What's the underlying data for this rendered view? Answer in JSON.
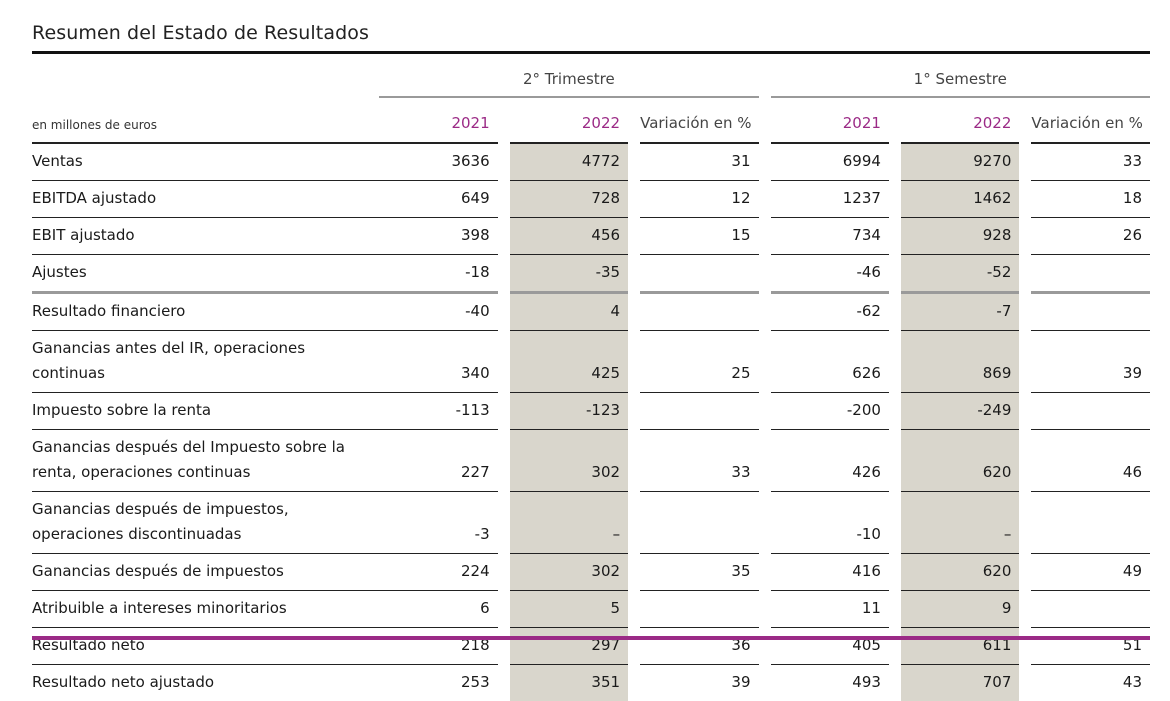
{
  "title": "Resumen del Estado de Resultados",
  "groups": {
    "q2": "2° Trimestre",
    "h1": "1° Semestre"
  },
  "columns": {
    "units": "en millones de euros",
    "q2_2021": "2021",
    "q2_2022": "2022",
    "q2_var": "Variación en %",
    "h1_2021": "2021",
    "h1_2022": "2022",
    "h1_var": "Variación en %"
  },
  "rows": [
    {
      "label": "Ventas",
      "q2_2021": "3636",
      "q2_2022": "4772",
      "q2_var": "31",
      "h1_2021": "6994",
      "h1_2022": "9270",
      "h1_var": "33"
    },
    {
      "label": "EBITDA ajustado",
      "q2_2021": "649",
      "q2_2022": "728",
      "q2_var": "12",
      "h1_2021": "1237",
      "h1_2022": "1462",
      "h1_var": "18"
    },
    {
      "label": "EBIT ajustado",
      "q2_2021": "398",
      "q2_2022": "456",
      "q2_var": "15",
      "h1_2021": "734",
      "h1_2022": "928",
      "h1_var": "26"
    },
    {
      "label": "Ajustes",
      "q2_2021": "-18",
      "q2_2022": "-35",
      "q2_var": "",
      "h1_2021": "-46",
      "h1_2022": "-52",
      "h1_var": ""
    },
    {
      "label": "Resultado financiero",
      "q2_2021": "-40",
      "q2_2022": "4",
      "q2_var": "",
      "h1_2021": "-62",
      "h1_2022": "-7",
      "h1_var": ""
    },
    {
      "label": "Ganancias antes del IR, operaciones continuas",
      "q2_2021": "340",
      "q2_2022": "425",
      "q2_var": "25",
      "h1_2021": "626",
      "h1_2022": "869",
      "h1_var": "39"
    },
    {
      "label": "Impuesto sobre la renta",
      "q2_2021": "-113",
      "q2_2022": "-123",
      "q2_var": "",
      "h1_2021": "-200",
      "h1_2022": "-249",
      "h1_var": ""
    },
    {
      "label": "Ganancias después del Impuesto sobre la renta, operaciones continuas",
      "q2_2021": "227",
      "q2_2022": "302",
      "q2_var": "33",
      "h1_2021": "426",
      "h1_2022": "620",
      "h1_var": "46"
    },
    {
      "label": "Ganancias después de impuestos, operaciones discontinuadas",
      "q2_2021": "-3",
      "q2_2022": "–",
      "q2_var": "",
      "h1_2021": "-10",
      "h1_2022": "–",
      "h1_var": ""
    },
    {
      "label": "Ganancias después de impuestos",
      "q2_2021": "224",
      "q2_2022": "302",
      "q2_var": "35",
      "h1_2021": "416",
      "h1_2022": "620",
      "h1_var": "49"
    },
    {
      "label": "Atribuible a intereses minoritarios",
      "q2_2021": "6",
      "q2_2022": "5",
      "q2_var": "",
      "h1_2021": "11",
      "h1_2022": "9",
      "h1_var": ""
    },
    {
      "label": "Resultado neto",
      "q2_2021": "218",
      "q2_2022": "297",
      "q2_var": "36",
      "h1_2021": "405",
      "h1_2022": "611",
      "h1_var": "51"
    },
    {
      "label": "Resultado neto ajustado",
      "q2_2021": "253",
      "q2_2022": "351",
      "q2_var": "39",
      "h1_2021": "493",
      "h1_2022": "707",
      "h1_var": "43"
    }
  ],
  "colors": {
    "year_header": "#9b2a86",
    "highlight_column": "#d9d6cc",
    "bottom_rule": "#9b2a86"
  }
}
